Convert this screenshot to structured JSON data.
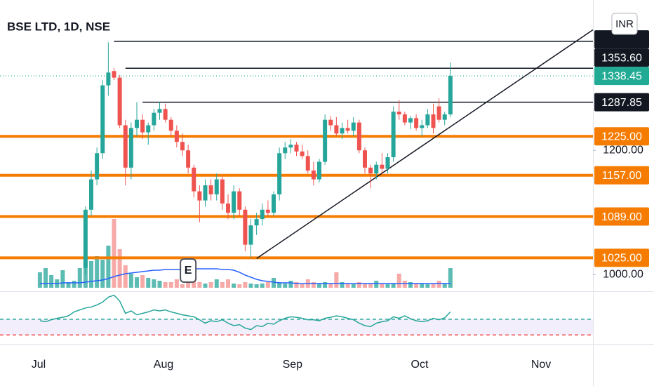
{
  "chart_data": {
    "type": "candlestick",
    "title": "BSE LTD, 1D, NSE",
    "currency": "INR",
    "categories": [
      null,
      null,
      null,
      null,
      null,
      null,
      null,
      null,
      null,
      null,
      null,
      null,
      null,
      null,
      null,
      null,
      null,
      null,
      null,
      null,
      null,
      null,
      null,
      null,
      null,
      null,
      null,
      null,
      null,
      null,
      null,
      null,
      null,
      null,
      null,
      null,
      null,
      null,
      null,
      null,
      null,
      null,
      null,
      null,
      null,
      null,
      null,
      null,
      null,
      null,
      null,
      null,
      null,
      null,
      null,
      null,
      null,
      null,
      null,
      null,
      null,
      null,
      null,
      null,
      null,
      null,
      null,
      null,
      null,
      null,
      null,
      null,
      null
    ],
    "open": [
      null,
      null,
      null,
      null,
      null,
      null,
      null,
      null,
      1010,
      1100,
      1150,
      1195,
      1320,
      1348,
      1335,
      1245,
      1170,
      1240,
      1255,
      1232,
      1245,
      1268,
      1275,
      1255,
      1235,
      1215,
      1200,
      1170,
      1130,
      1115,
      1140,
      1125,
      1150,
      1110,
      1095,
      1130,
      1100,
      1045,
      1075,
      1085,
      1100,
      1095,
      1125,
      1195,
      1205,
      1210,
      1198,
      1190,
      1165,
      1150,
      1180,
      1255,
      1245,
      1230,
      1240,
      1235,
      1250,
      1200,
      1170,
      1160,
      1175,
      1168,
      1188,
      1270,
      1265,
      1250,
      1258,
      1240,
      1245,
      1265,
      1280,
      1255,
      1265
    ],
    "high": [
      null,
      null,
      null,
      null,
      null,
      null,
      null,
      null,
      1105,
      1165,
      1205,
      1330,
      1406,
      1354,
      1340,
      1255,
      1250,
      1288,
      1265,
      1250,
      1275,
      1288,
      1285,
      1260,
      1245,
      1230,
      1210,
      1175,
      1140,
      1150,
      1150,
      1160,
      1155,
      1125,
      1140,
      1135,
      1105,
      1085,
      1095,
      1110,
      1115,
      1130,
      1205,
      1215,
      1220,
      1215,
      1210,
      1200,
      1180,
      1185,
      1265,
      1262,
      1260,
      1250,
      1255,
      1260,
      1255,
      1205,
      1175,
      1180,
      1195,
      1195,
      1280,
      1292,
      1270,
      1262,
      1265,
      1255,
      1275,
      1285,
      1295,
      1270,
      1365
    ],
    "low": [
      null,
      null,
      null,
      null,
      null,
      null,
      null,
      null,
      1000,
      1090,
      1140,
      1185,
      1300,
      1330,
      1240,
      1140,
      1150,
      1225,
      1220,
      1210,
      1235,
      1255,
      1250,
      1225,
      1205,
      1190,
      1160,
      1120,
      1080,
      1105,
      1115,
      1115,
      1100,
      1085,
      1085,
      1090,
      1035,
      1025,
      1060,
      1075,
      1090,
      1090,
      1115,
      1185,
      1195,
      1190,
      1185,
      1160,
      1140,
      1145,
      1175,
      1235,
      1225,
      1220,
      1230,
      1225,
      1195,
      1160,
      1135,
      1150,
      1160,
      1160,
      1180,
      1255,
      1245,
      1238,
      1235,
      1225,
      1240,
      1230,
      1250,
      1245,
      1260
    ],
    "close": [
      null,
      null,
      null,
      null,
      null,
      null,
      null,
      null,
      1100,
      1150,
      1195,
      1320,
      1345,
      1335,
      1245,
      1170,
      1240,
      1255,
      1232,
      1245,
      1268,
      1275,
      1255,
      1235,
      1215,
      1200,
      1170,
      1130,
      1115,
      1140,
      1125,
      1150,
      1110,
      1095,
      1130,
      1100,
      1045,
      1075,
      1085,
      1100,
      1095,
      1125,
      1195,
      1205,
      1210,
      1198,
      1190,
      1165,
      1150,
      1180,
      1255,
      1245,
      1230,
      1240,
      1235,
      1250,
      1200,
      1170,
      1160,
      1175,
      1168,
      1188,
      1270,
      1265,
      1250,
      1258,
      1240,
      1245,
      1265,
      1240,
      1255,
      1265,
      1338.45
    ],
    "up_color": "#26a69a",
    "down_color": "#ef5350",
    "volume": [
      22,
      28,
      18,
      12,
      25,
      8,
      10,
      28,
      40,
      38,
      45,
      40,
      60,
      98,
      55,
      32,
      20,
      15,
      18,
      14,
      12,
      10,
      8,
      8,
      12,
      5,
      8,
      10,
      8,
      6,
      8,
      12,
      8,
      12,
      6,
      5,
      8,
      6,
      5,
      6,
      8,
      14,
      8,
      6,
      10,
      8,
      5,
      12,
      8,
      6,
      8,
      6,
      22,
      8,
      6,
      5,
      8,
      6,
      6,
      10,
      6,
      5,
      6,
      20,
      10,
      8,
      6,
      6,
      5,
      6,
      10,
      6,
      28
    ],
    "volume_ma": [
      6,
      6,
      6,
      6,
      7,
      7,
      7,
      7,
      8,
      9,
      10,
      11,
      13,
      16,
      18,
      20,
      21,
      22,
      23,
      24,
      25,
      25,
      26,
      26,
      26,
      26,
      27,
      27,
      27,
      27,
      27,
      27,
      26,
      26,
      25,
      22,
      18,
      15,
      12,
      10,
      9,
      8,
      7,
      7,
      7,
      6,
      6,
      6,
      6,
      6,
      6,
      6,
      6,
      6,
      6,
      6,
      6,
      6,
      6,
      6,
      6,
      6,
      6,
      6,
      6,
      6,
      6,
      6,
      6,
      6,
      6,
      6,
      6
    ],
    "volume_ma_color": "#2962ff",
    "oscillator": {
      "values": [
        40,
        38,
        42,
        45,
        47,
        50,
        58,
        62,
        66,
        68,
        72,
        78,
        88,
        92,
        80,
        55,
        60,
        52,
        55,
        58,
        62,
        60,
        62,
        58,
        55,
        52,
        50,
        48,
        42,
        35,
        40,
        38,
        42,
        35,
        30,
        32,
        25,
        22,
        30,
        28,
        35,
        33,
        40,
        45,
        48,
        47,
        45,
        42,
        42,
        40,
        45,
        47,
        50,
        48,
        45,
        42,
        35,
        30,
        28,
        35,
        38,
        40,
        48,
        45,
        50,
        44,
        40,
        38,
        40,
        45,
        42,
        46,
        58
      ],
      "ylim": [
        0,
        100
      ],
      "color": "#26a69a",
      "band_color": "#f3eefb",
      "levels": [
        {
          "value": 43,
          "color": "#26a69a"
        },
        {
          "value": 11,
          "color": "#ef5350"
        }
      ]
    },
    "ylim": [
      976,
      1496
    ],
    "log": true,
    "yticks": [
      {
        "value": 1000,
        "label": "1000.00"
      },
      {
        "value": 1200,
        "label": "1200.00"
      }
    ],
    "xlim": [
      -7,
      97
    ],
    "xticks": [
      {
        "value": -0.23,
        "label": "Jul"
      },
      {
        "value": 21.68,
        "label": "Aug"
      },
      {
        "value": 44.3,
        "label": "Sep"
      },
      {
        "value": 66.6,
        "label": "Oct"
      },
      {
        "value": 87.9,
        "label": "Nov"
      }
    ],
    "levels": [
      {
        "value": 1408,
        "color": "#131722",
        "start": 13
      },
      {
        "value": 1353.6,
        "label": "1353.60",
        "color": "#131722",
        "start": 15
      },
      {
        "value": 1338.45,
        "label": "1338.45",
        "color": "#22ab94",
        "style": "dotted"
      },
      {
        "value": 1287.85,
        "label": "1287.85",
        "color": "#131722",
        "start": 18
      },
      {
        "value": 1225,
        "label": "1225.00",
        "color": "#f57c00"
      },
      {
        "value": 1157,
        "label": "1157.00",
        "color": "#f57c00"
      },
      {
        "value": 1089,
        "label": "1089.00",
        "color": "#f57c00"
      },
      {
        "value": 1025,
        "label": "1025.00",
        "color": "#f57c00"
      }
    ],
    "trendline": {
      "x": [
        38,
        97
      ],
      "y": [
        1024,
        1432
      ],
      "color": "#131722"
    },
    "events": [
      {
        "x": 26,
        "label": "E"
      }
    ]
  }
}
